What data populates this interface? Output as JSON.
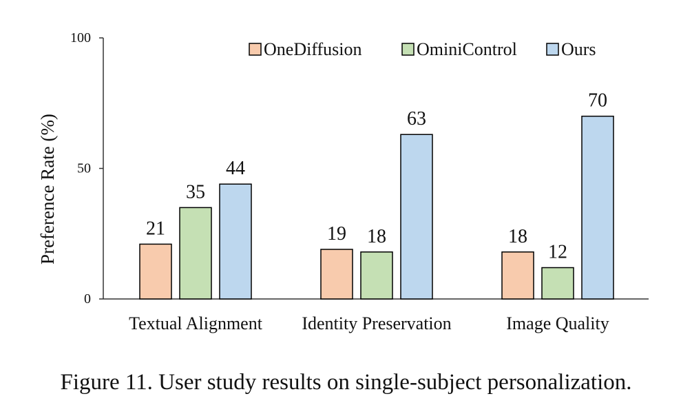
{
  "chart_data": {
    "type": "bar",
    "title": "",
    "xlabel": "",
    "ylabel": "Preference Rate (%)",
    "ylim": [
      0,
      100
    ],
    "yticks": [
      "0",
      "50",
      "100"
    ],
    "grid": false,
    "legend_position": "top",
    "categories": [
      "Textual Alignment",
      "Identity Preservation",
      "Image Quality"
    ],
    "series": [
      {
        "name": "OneDiffusion",
        "color": "#f8cbad",
        "values": [
          21,
          19,
          18
        ]
      },
      {
        "name": "OminiControl",
        "color": "#c5e0b4",
        "values": [
          35,
          18,
          12
        ]
      },
      {
        "name": "Ours",
        "color": "#bdd7ee",
        "values": [
          44,
          63,
          70
        ]
      }
    ]
  },
  "caption": "Figure 11. User study results on single-subject personalization."
}
